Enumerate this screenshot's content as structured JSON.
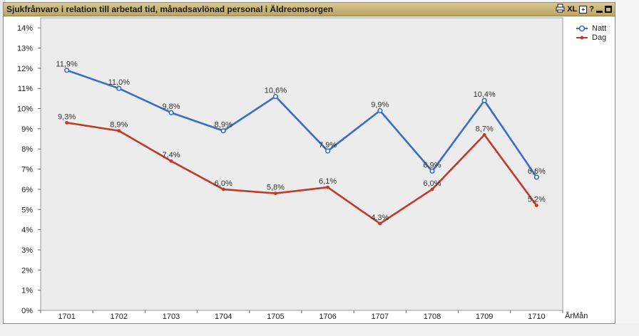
{
  "window": {
    "title": "Sjukfrånvaro i relation till arbetad tid, månadsavlönad personal i Äldreomsorgen",
    "icons": [
      "print-icon",
      "excel-icon",
      "detach-icon",
      "help-icon",
      "minimize-icon",
      "maximize-icon"
    ],
    "xl_label": "XL",
    "help_label": "?"
  },
  "chart_data": {
    "type": "line",
    "title": "Sjukfrånvaro i relation till arbetad tid, månadsavlönad personal i Äldreomsorgen",
    "xlabel": "ÅrMån",
    "ylabel": "",
    "categories": [
      "1701",
      "1702",
      "1703",
      "1704",
      "1705",
      "1706",
      "1707",
      "1708",
      "1709",
      "1710"
    ],
    "ylim": [
      0,
      14.5
    ],
    "yticks": [
      0,
      1,
      2,
      3,
      4,
      5,
      6,
      7,
      8,
      9,
      10,
      11,
      12,
      13,
      14
    ],
    "ytick_labels": [
      "0%",
      "1%",
      "2%",
      "3%",
      "4%",
      "5%",
      "6%",
      "7%",
      "8%",
      "9%",
      "10%",
      "11%",
      "12%",
      "13%",
      "14%"
    ],
    "grid": false,
    "legend": "top-right",
    "series": [
      {
        "name": "Natt",
        "color": "#3a6cc8",
        "values": [
          11.9,
          11.0,
          9.8,
          8.9,
          10.6,
          7.9,
          9.9,
          6.9,
          10.4,
          6.6
        ],
        "labels": [
          "11,9%",
          "11,0%",
          "9,8%",
          "8,9%",
          "10,6%",
          "7,9%",
          "9,9%",
          "6,9%",
          "10,4%",
          "6,6%"
        ]
      },
      {
        "name": "Dag",
        "color": "#c0392b",
        "values": [
          9.3,
          8.9,
          7.4,
          6.0,
          5.8,
          6.1,
          4.3,
          6.0,
          8.7,
          5.2
        ],
        "labels": [
          "9,3%",
          "8,9%",
          "7,4%",
          "6,0%",
          "5,8%",
          "6,1%",
          "4,3%",
          "6,0%",
          "8,7%",
          "5,2%"
        ]
      }
    ]
  }
}
